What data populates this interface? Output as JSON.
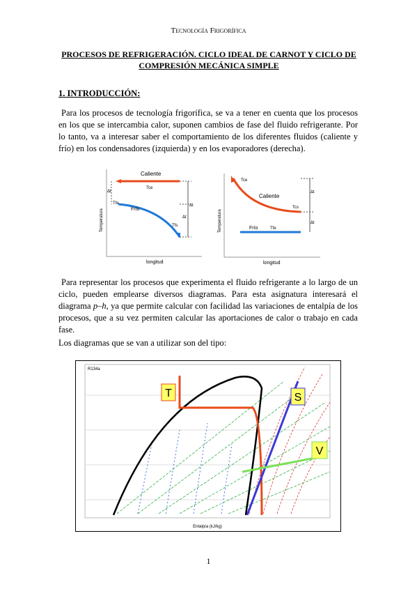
{
  "header": {
    "title": "Tecnología Frigorífica"
  },
  "title": {
    "line1": "PROCESOS DE REFRIGERACIÓN. CICLO IDEAL DE CARNOT Y CICLO DE",
    "line2": "COMPRESIÓN MECÁNICA SIMPLE"
  },
  "section": {
    "heading": "1. INTRODUCCIÓN:"
  },
  "paragraphs": [
    [
      "Para los procesos de tecnología frigorífica, se va a tener en cuenta que los procesos en los que se intercambia calor, suponen cambios de fase del fluido refrigerante. Por lo tanto, va a interesar saber el comportamiento de los diferentes fluidos (caliente y frío) en los condensadores (izquierda) y en los evaporadores (derecha)."
    ],
    [
      "Para representar los procesos que experimenta el fluido refrigerante a lo largo de un ciclo, pueden emplearse diversos diagramas. Para esta asignatura interesará el diagrama ",
      "p–h",
      ", ya que permite calcular con facilidad las variaciones de entalpía de los procesos, que a su vez permiten calcular las aportaciones de calor o trabajo en cada fase."
    ],
    [
      "Los diagramas que se van a utilizar son del tipo:"
    ]
  ],
  "figure_left": {
    "hot": "Caliente",
    "hot_temp": "Tce",
    "cold": "Frío",
    "cold_in": "Tfe",
    "cold_out": "Tfs",
    "dt1": "Δt",
    "dt2": "Δt",
    "dt3": "Δt",
    "ylabel": "Temperatura",
    "xlabel": "longitud"
  },
  "figure_right": {
    "hot": "Caliente",
    "hot_in": "Tce",
    "hot_out": "Tcs",
    "cold": "Frío",
    "cold_temp": "Tfe",
    "dt1": "Δt",
    "dt2": "Δt",
    "ylabel": "Temperatura",
    "xlabel": "longitud"
  },
  "diagram": {
    "name": "R134a",
    "xlabel": "Entalpía (kJ/kg)",
    "labels": [
      "T",
      "S",
      "V"
    ]
  },
  "footer": {
    "page": "1"
  }
}
